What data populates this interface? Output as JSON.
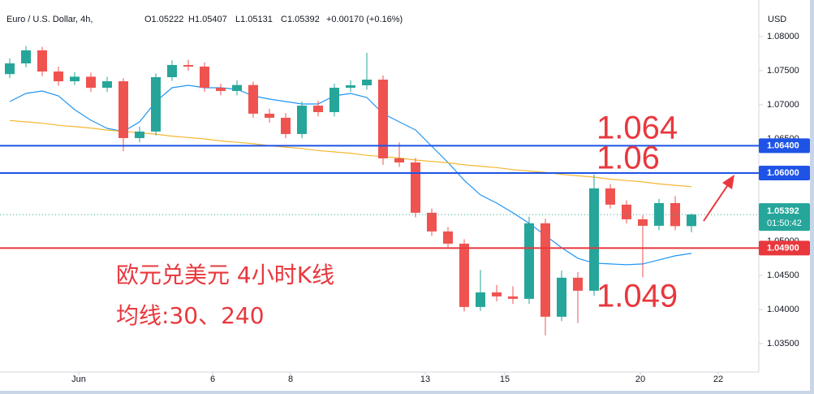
{
  "chart_data": {
    "type": "candlestick",
    "title": "Euro / U.S. Dollar, 4h,",
    "header_values": [
      "O1.05222",
      "H1.05407",
      "L1.05131",
      "C1.05392",
      "+0.00170 (+0.16%)"
    ],
    "y_unit": "USD",
    "up_color": "#26a69a",
    "down_color": "#ef5350",
    "open": [
      1.0745,
      1.07607,
      1.07798,
      1.07488,
      1.07345,
      1.07412,
      1.0725,
      1.07345,
      1.06512,
      1.06608,
      1.07405,
      1.07583,
      1.0756,
      1.0725,
      1.07203,
      1.0729,
      1.0687,
      1.0681,
      1.06572,
      1.06988,
      1.06893,
      1.0725,
      1.07286,
      1.07369,
      1.06215,
      1.06155,
      1.05418,
      1.05144,
      1.04965,
      1.04037,
      1.04251,
      1.04192,
      1.04156,
      1.05263,
      1.03894,
      1.04466,
      1.04275,
      1.05775,
      1.05537,
      1.05322,
      1.05227,
      1.0556,
      1.05222
    ],
    "high": [
      1.0768,
      1.0786,
      1.0785,
      1.0756,
      1.0748,
      1.0747,
      1.0741,
      1.0739,
      1.0668,
      1.0746,
      1.0765,
      1.0766,
      1.0762,
      1.0731,
      1.0736,
      1.0734,
      1.0694,
      1.0688,
      1.0705,
      1.0706,
      1.0731,
      1.0736,
      1.07762,
      1.0743,
      1.0645,
      1.0622,
      1.0548,
      1.0521,
      1.0503,
      1.0458,
      1.0436,
      1.0434,
      1.0536,
      1.0533,
      1.0457,
      1.0455,
      1.0598,
      1.0584,
      1.056,
      1.0538,
      1.0562,
      1.0566,
      1.05407
    ],
    "low": [
      1.0739,
      1.0755,
      1.0742,
      1.0728,
      1.0729,
      1.0719,
      1.0719,
      1.0632,
      1.0645,
      1.0655,
      1.0735,
      1.075,
      1.0719,
      1.0714,
      1.0714,
      1.0681,
      1.0674,
      1.0651,
      1.0651,
      1.0683,
      1.0683,
      1.0719,
      1.0722,
      1.0612,
      1.0609,
      1.0535,
      1.0508,
      1.049,
      1.0397,
      1.0398,
      1.0412,
      1.0408,
      1.0408,
      1.0362,
      1.0383,
      1.038,
      1.042,
      1.0548,
      1.0526,
      1.0447,
      1.0516,
      1.0516,
      1.05131
    ],
    "close": [
      1.07607,
      1.07798,
      1.07488,
      1.07345,
      1.07412,
      1.0725,
      1.07345,
      1.06512,
      1.06608,
      1.07405,
      1.07583,
      1.0756,
      1.0725,
      1.07203,
      1.0729,
      1.0687,
      1.0681,
      1.06572,
      1.06988,
      1.06893,
      1.0725,
      1.07286,
      1.07369,
      1.06215,
      1.06155,
      1.05418,
      1.05144,
      1.04965,
      1.04037,
      1.04251,
      1.04192,
      1.04156,
      1.05263,
      1.03894,
      1.04466,
      1.04275,
      1.05775,
      1.05537,
      1.05322,
      1.05227,
      1.0556,
      1.05222,
      1.05392
    ],
    "moving_averages": [
      {
        "color": "#2196f3",
        "values": [
          1.07048,
          1.07167,
          1.07203,
          1.07131,
          1.06929,
          1.06774,
          1.06655,
          1.06608,
          1.0675,
          1.07048,
          1.0725,
          1.07286,
          1.0725,
          1.0725,
          1.07226,
          1.07131,
          1.07084,
          1.07048,
          1.07012,
          1.07012,
          1.07131,
          1.07167,
          1.07107,
          1.0687,
          1.0675,
          1.06631,
          1.06393,
          1.06155,
          1.05894,
          1.0568,
          1.0556,
          1.05418,
          1.05263,
          1.05084,
          1.04906,
          1.04751,
          1.0468,
          1.04668,
          1.04656,
          1.04668,
          1.04727,
          1.04787,
          1.04823
        ]
      },
      {
        "color": "#f5b731",
        "values": [
          1.0677,
          1.0675,
          1.0673,
          1.067,
          1.0668,
          1.0666,
          1.0663,
          1.0661,
          1.0659,
          1.0657,
          1.0654,
          1.0652,
          1.065,
          1.0647,
          1.0645,
          1.0643,
          1.064,
          1.0638,
          1.0636,
          1.0633,
          1.0631,
          1.0629,
          1.0626,
          1.0624,
          1.0622,
          1.0619,
          1.0617,
          1.0615,
          1.0612,
          1.061,
          1.0608,
          1.0605,
          1.0603,
          1.0601,
          1.0598,
          1.0596,
          1.0594,
          1.0591,
          1.0589,
          1.0587,
          1.0584,
          1.0582,
          1.058
        ]
      }
    ],
    "levels": [
      {
        "value": 1.064,
        "label": "1.06400",
        "color": "#1e53e5",
        "annotation": "1.064"
      },
      {
        "value": 1.06,
        "label": "1.06000",
        "color": "#1e53e5",
        "annotation": "1.06"
      },
      {
        "value": 1.049,
        "label": "1.04900",
        "color": "#e8383d",
        "annotation": "1.049"
      }
    ],
    "current_price": {
      "value": 1.05392,
      "label": "1.05392",
      "countdown": "01:50:42",
      "color": "#26a69a"
    },
    "annotations": [
      "欧元兑美元 4小时K线",
      "均线:30、240"
    ],
    "xlim": [
      -0.6,
      46.15
    ],
    "xticks": [
      {
        "value": 4.25,
        "label": "Jun"
      },
      {
        "value": 12.5,
        "label": "6"
      },
      {
        "value": 17.3,
        "label": "8"
      },
      {
        "value": 25.6,
        "label": "13"
      },
      {
        "value": 30.5,
        "label": "15"
      },
      {
        "value": 38.85,
        "label": "20"
      },
      {
        "value": 43.65,
        "label": "22"
      }
    ],
    "ylim": [
      1.03083,
      1.08536
    ],
    "yticks": [
      {
        "value": 1.035,
        "label": "1.03500"
      },
      {
        "value": 1.04,
        "label": "1.04000"
      },
      {
        "value": 1.045,
        "label": "1.04500"
      },
      {
        "value": 1.05,
        "label": "1.05000"
      },
      {
        "value": 1.055,
        "label": "1.05500"
      },
      {
        "value": 1.06,
        "label": "1.06000"
      },
      {
        "value": 1.065,
        "label": "1.06500"
      },
      {
        "value": 1.07,
        "label": "1.07000"
      },
      {
        "value": 1.075,
        "label": "1.07500"
      },
      {
        "value": 1.08,
        "label": "1.08000"
      }
    ]
  }
}
